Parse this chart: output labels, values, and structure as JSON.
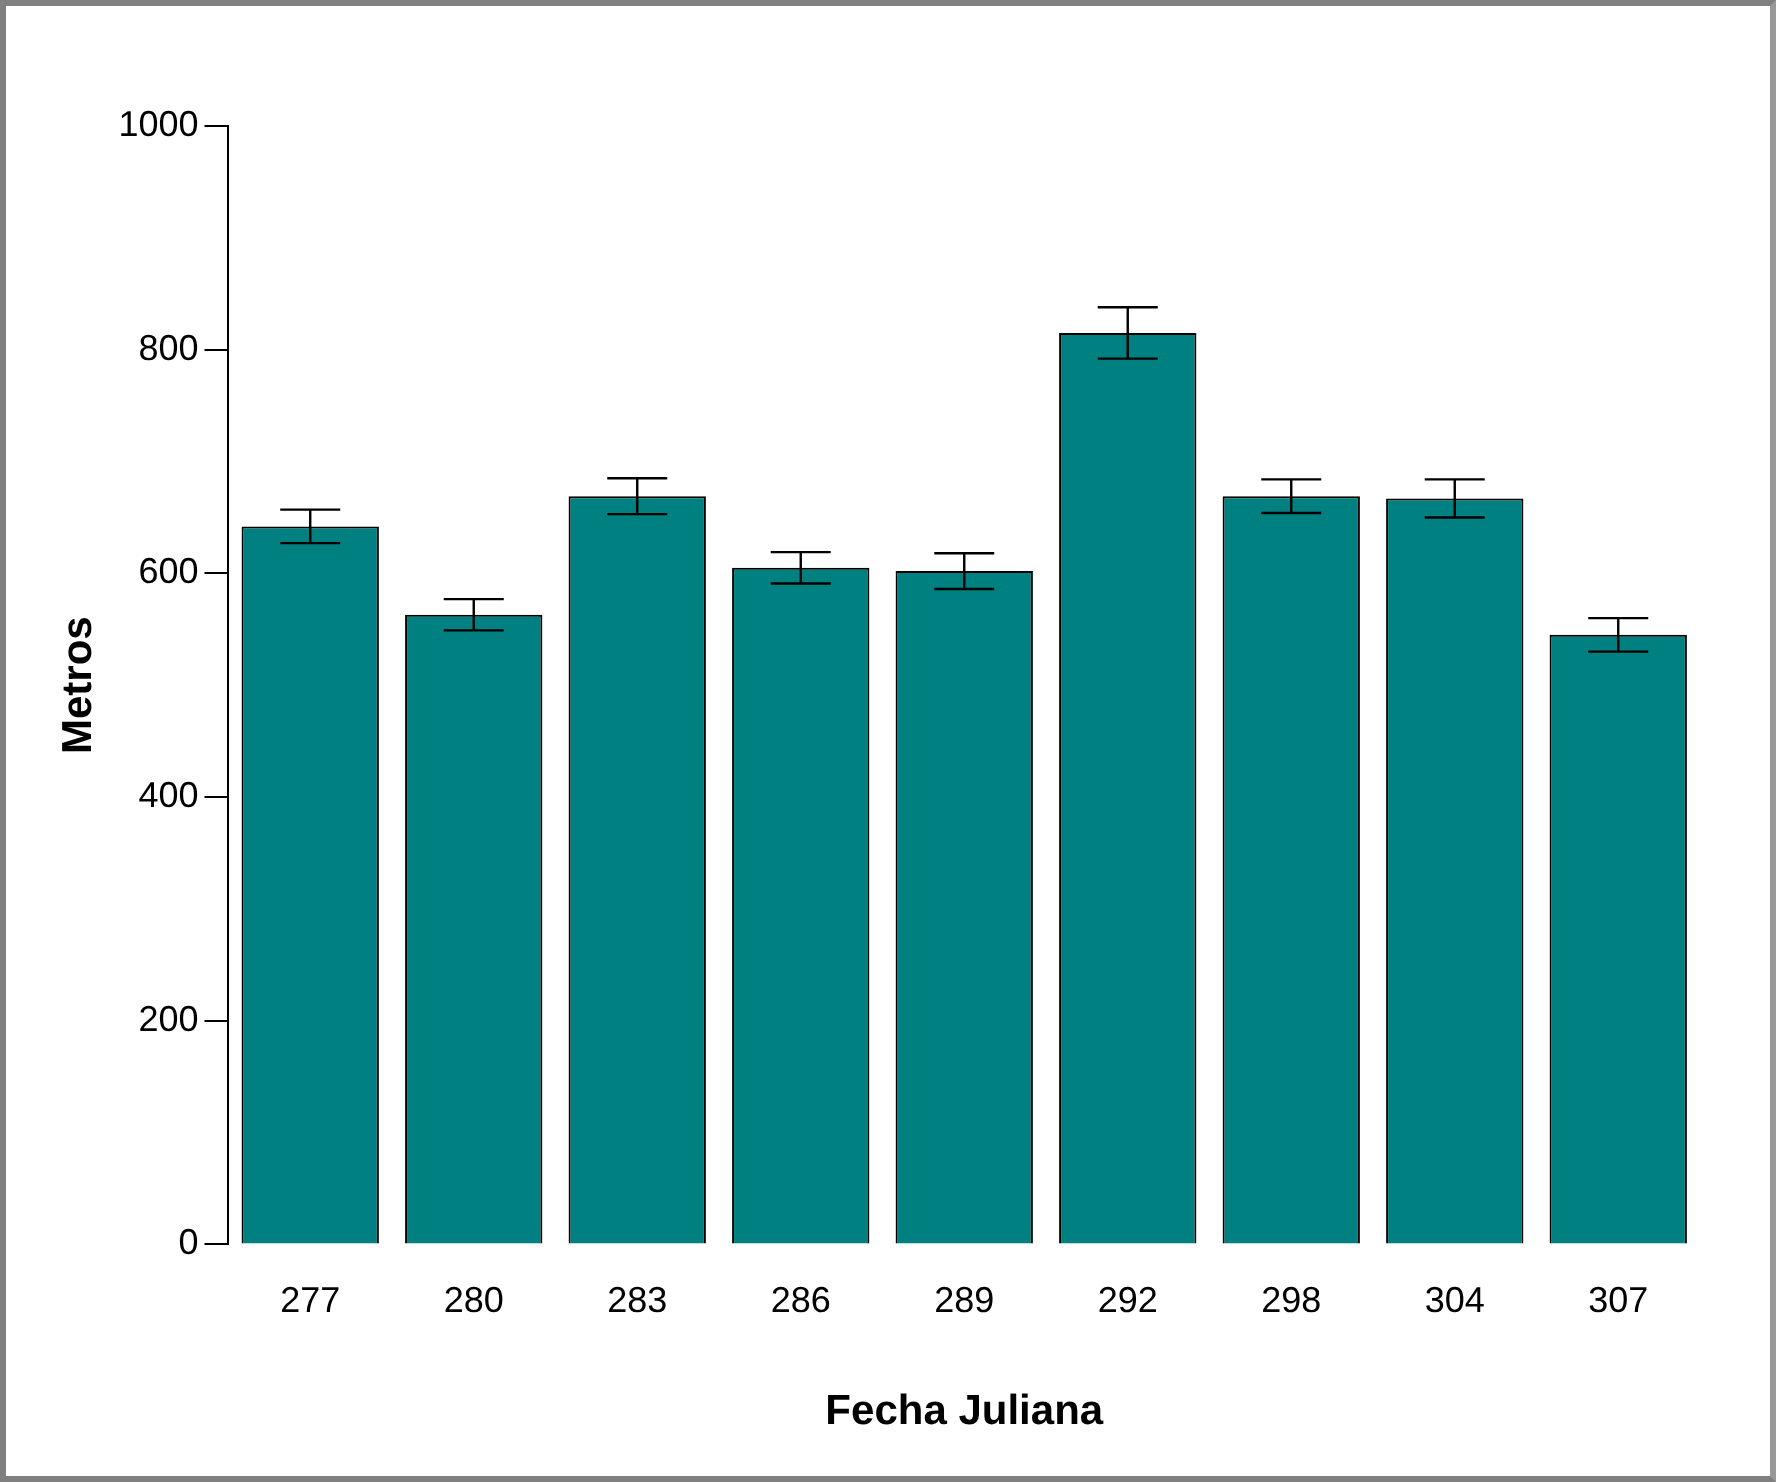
{
  "chart_data": {
    "type": "bar",
    "xlabel": "Fecha Juliana",
    "ylabel": "Metros",
    "categories": [
      "277",
      "280",
      "283",
      "286",
      "289",
      "292",
      "298",
      "304",
      "307"
    ],
    "values": [
      642,
      563,
      669,
      605,
      602,
      815,
      669,
      667,
      545
    ],
    "errors": [
      15,
      14,
      16,
      14,
      16,
      23,
      15,
      17,
      15
    ],
    "color": "#008080",
    "ylim": [
      0,
      1000
    ],
    "yticks": [
      0,
      200,
      400,
      600,
      800,
      1000
    ],
    "grid": false,
    "legend": false
  }
}
